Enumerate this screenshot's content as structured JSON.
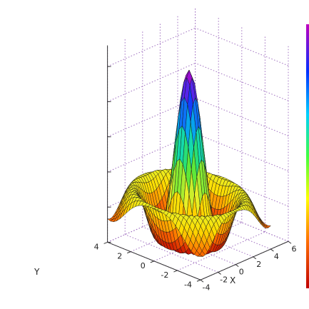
{
  "chart_data": {
    "type": "surface",
    "function": "sinc(r)",
    "x_range": [
      -4,
      6
    ],
    "y_range": [
      -4,
      4
    ],
    "zlim": [
      -0.25,
      1.0
    ],
    "peak": {
      "x": 0,
      "y": 0,
      "z": 1.0
    },
    "grid": true,
    "grid_style": "dotted",
    "colorbar": true,
    "colormap": "jet",
    "x_ticks": [
      "-4",
      "-2",
      "0",
      "2",
      "4",
      "6"
    ],
    "y_ticks": [
      "-4",
      "-2",
      "0",
      "2",
      "4"
    ],
    "xlabel": "X",
    "ylabel": "Y",
    "colors": {
      "grid": "#a070c0",
      "mesh_edge": "#1a1a1a",
      "axis": "#333333"
    }
  }
}
